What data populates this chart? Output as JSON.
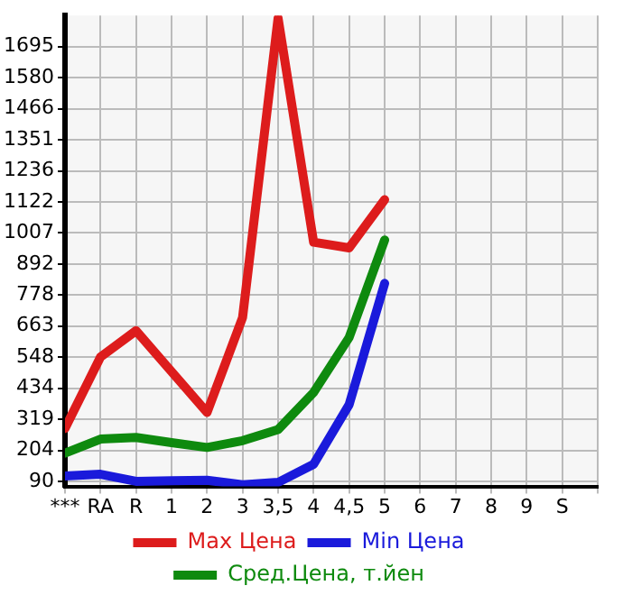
{
  "chart_data": {
    "type": "line",
    "categories": [
      "***",
      "RA",
      "R",
      "1",
      "2",
      "3",
      "3,5",
      "4",
      "4,5",
      "5",
      "6",
      "7",
      "8",
      "9",
      "S"
    ],
    "series": [
      {
        "name": "Max Цена",
        "color": "#dd1c1c",
        "values": [
          285,
          549,
          646,
          495,
          344,
          695,
          1800,
          973,
          952,
          1130,
          null,
          null,
          null,
          null,
          null
        ]
      },
      {
        "name": "Min Цена",
        "color": "#1a1adb",
        "values": [
          110,
          116,
          90,
          92,
          94,
          77,
          86,
          153,
          373,
          821,
          null,
          null,
          null,
          null,
          null
        ]
      },
      {
        "name": "Сред.Цена, т.йен",
        "color": "#0e8a0e",
        "values": [
          194,
          246,
          252,
          233,
          215,
          240,
          281,
          418,
          621,
          981,
          null,
          null,
          null,
          null,
          null
        ]
      }
    ],
    "ylim": [
      71,
      1810
    ],
    "yticks": [
      90,
      204,
      319,
      434,
      548,
      663,
      778,
      892,
      1007,
      1122,
      1236,
      1351,
      1466,
      1580,
      1695
    ],
    "grid": true,
    "legend": "bottom",
    "marker": "none",
    "line_style": "solid"
  }
}
